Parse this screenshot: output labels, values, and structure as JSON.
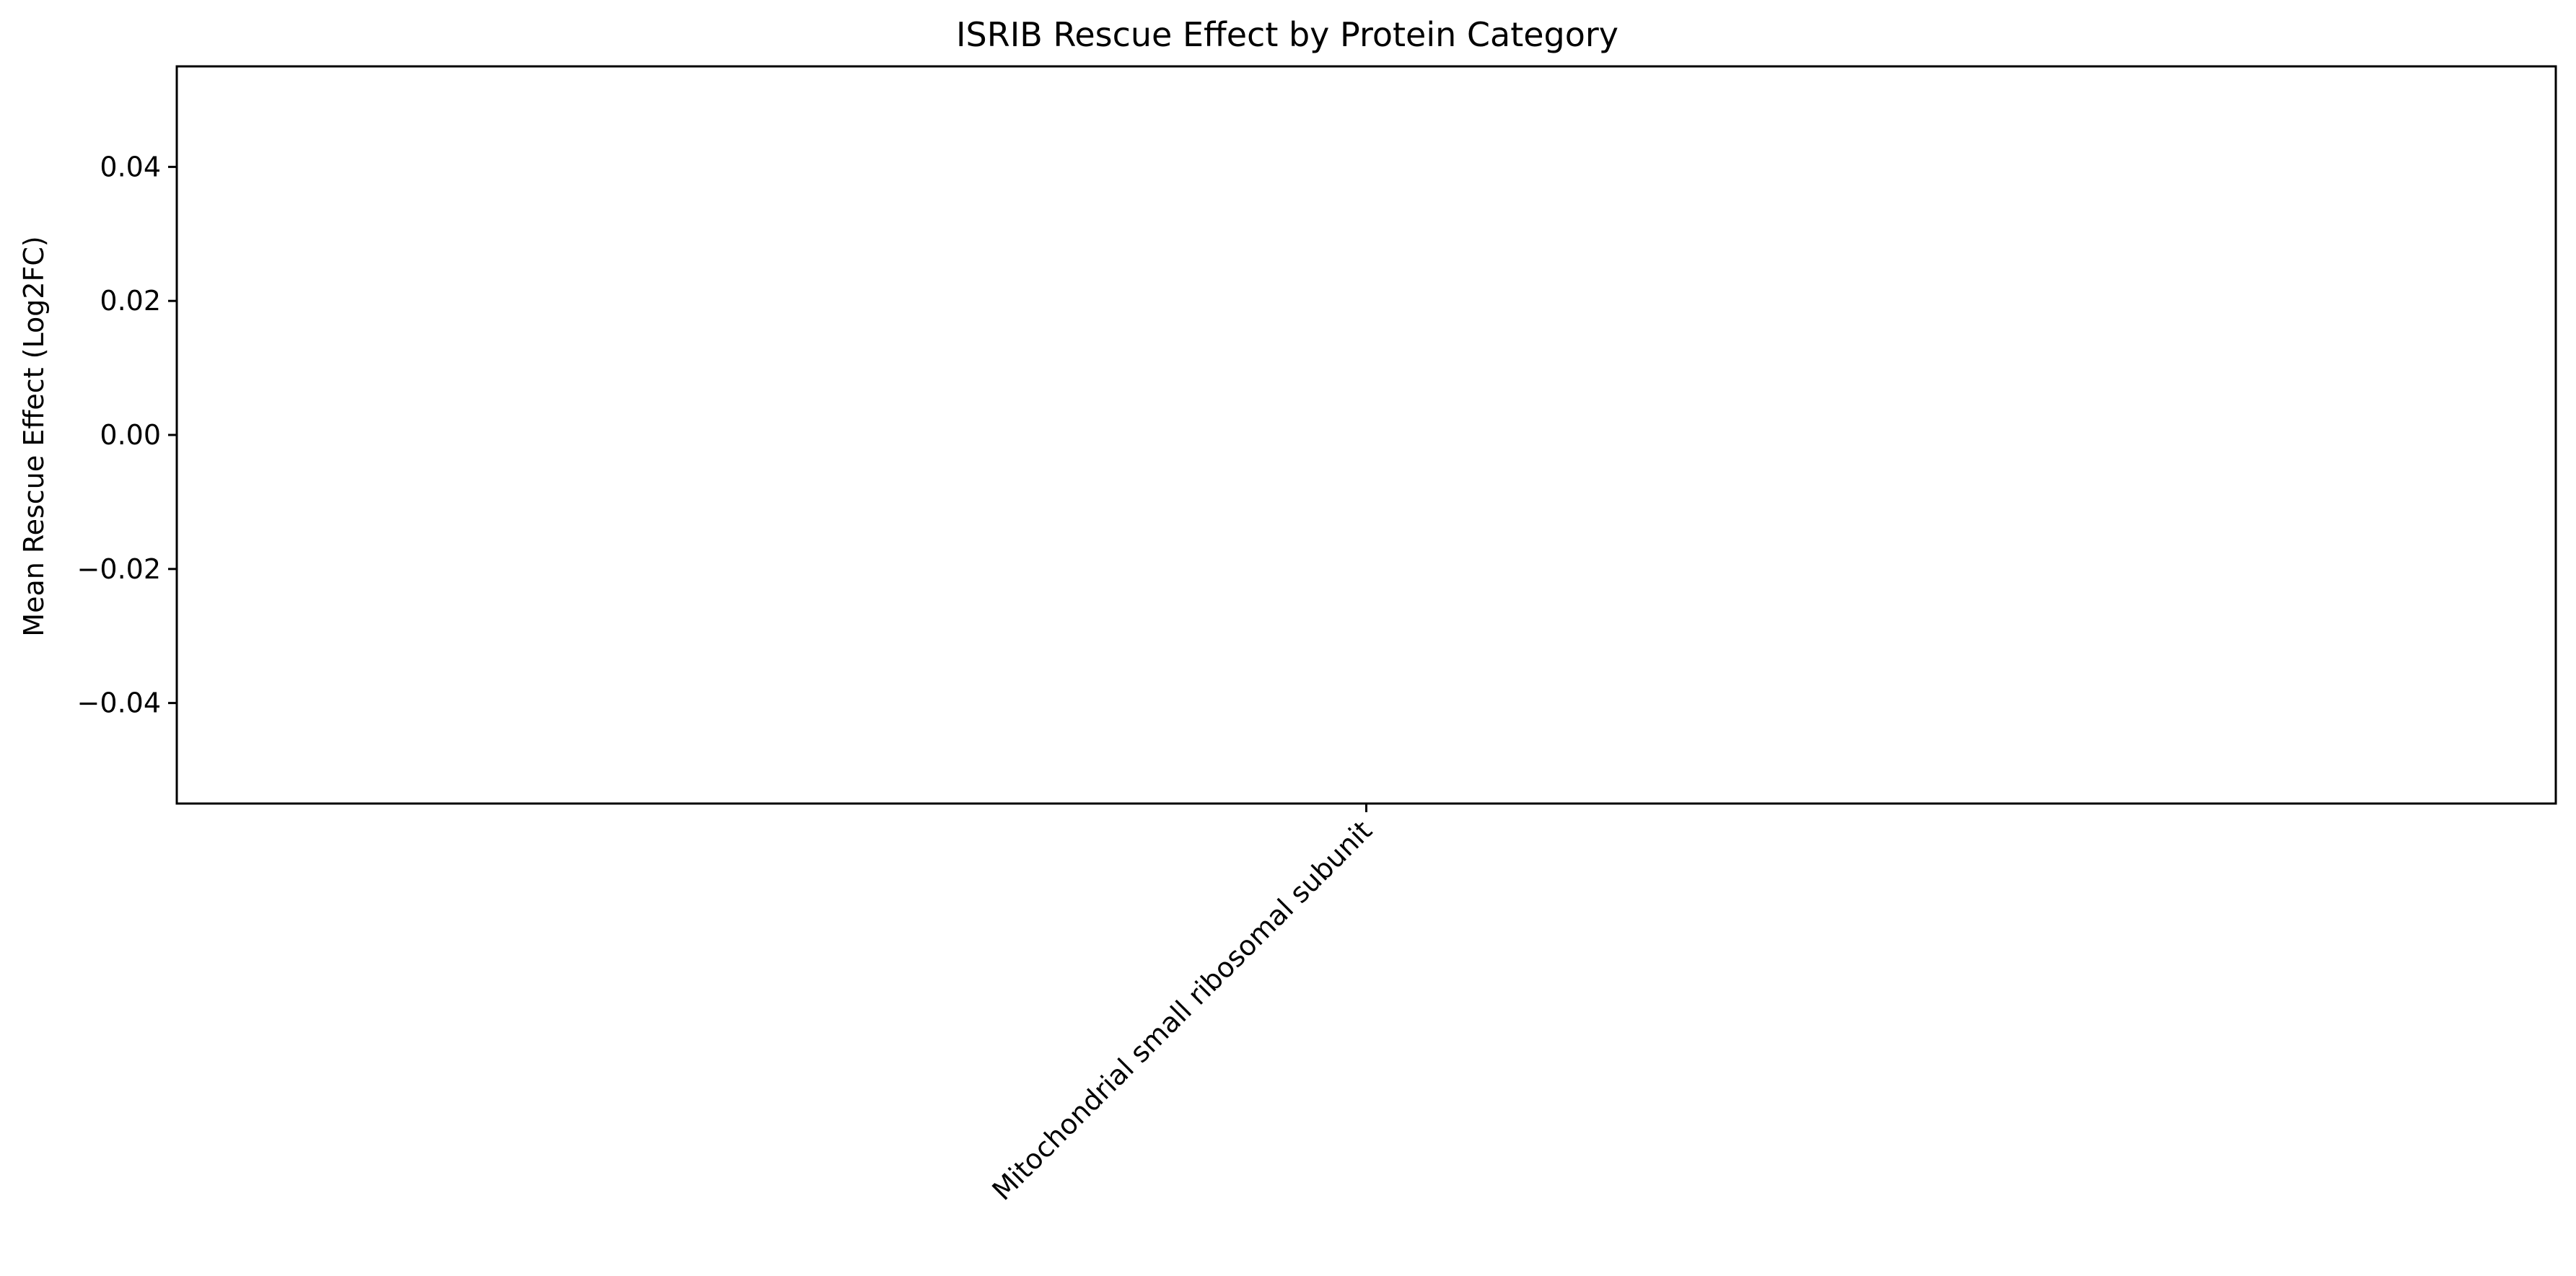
{
  "chart_data": {
    "type": "bar",
    "title": "ISRIB Rescue Effect by Protein Category",
    "xlabel": "",
    "ylabel": "Mean Rescue Effect (Log2FC)",
    "categories": [
      "Mitochondrial small ribosomal subunit"
    ],
    "values": [
      0.0
    ],
    "ylim": [
      -0.055,
      0.055
    ],
    "yticks": [
      -0.04,
      -0.02,
      0.0,
      0.02,
      0.04
    ],
    "ytick_labels": [
      "−0.04",
      "−0.02",
      "0.00",
      "0.02",
      "0.04"
    ],
    "grid": false,
    "legend": "none",
    "bar_color": "#1f77b4"
  }
}
